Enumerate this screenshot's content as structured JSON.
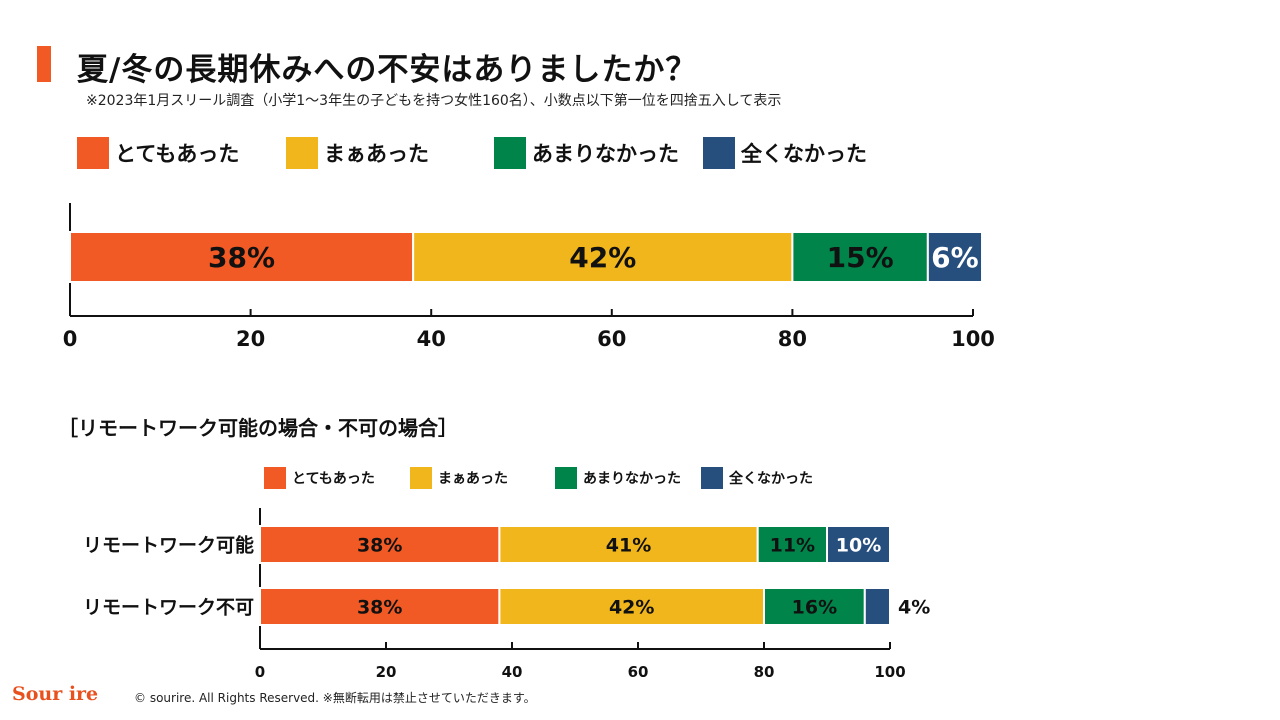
{
  "header": {
    "title": "夏/冬の長期休みへの不安はありましたか？",
    "note": "※2023年1月スリール調査（小学1〜3年生の子どもを持つ女性160名）、小数点以下第一位を四捨五入して表示"
  },
  "legend": [
    {
      "label": "とてもあった",
      "color": "#F15A24"
    },
    {
      "label": "まぁあった",
      "color": "#F1B61C"
    },
    {
      "label": "あまりなかった",
      "color": "#00844A"
    },
    {
      "label": "全くなかった",
      "color": "#264F7E"
    }
  ],
  "subtitle": "［リモートワーク可能の場合・不可の場合］",
  "chart_data": [
    {
      "type": "bar",
      "orientation": "horizontal",
      "stacked": true,
      "categories": [
        ""
      ],
      "series": [
        {
          "name": "とてもあった",
          "values": [
            38
          ],
          "color": "#F15A24"
        },
        {
          "name": "まぁあった",
          "values": [
            42
          ],
          "color": "#F1B61C"
        },
        {
          "name": "あまりなかった",
          "values": [
            15
          ],
          "color": "#00844A"
        },
        {
          "name": "全くなかった",
          "values": [
            6
          ],
          "color": "#264F7E"
        }
      ],
      "data_labels": [
        [
          "38%",
          "42%",
          "15%",
          "6%"
        ]
      ],
      "xlim": [
        0,
        100
      ],
      "xticks": [
        "0",
        "20",
        "40",
        "60",
        "80",
        "100"
      ],
      "legend": "top"
    },
    {
      "type": "bar",
      "orientation": "horizontal",
      "stacked": true,
      "categories": [
        "リモートワーク可能",
        "リモートワーク不可"
      ],
      "series": [
        {
          "name": "とてもあった",
          "values": [
            38,
            38
          ],
          "color": "#F15A24"
        },
        {
          "name": "まぁあった",
          "values": [
            41,
            42
          ],
          "color": "#F1B61C"
        },
        {
          "name": "あまりなかった",
          "values": [
            11,
            16
          ],
          "color": "#00844A"
        },
        {
          "name": "全くなかった",
          "values": [
            10,
            4
          ],
          "color": "#264F7E"
        }
      ],
      "data_labels": [
        [
          "38%",
          "41%",
          "11%",
          "10%"
        ],
        [
          "38%",
          "42%",
          "16%",
          "4%"
        ]
      ],
      "xlim": [
        0,
        100
      ],
      "xticks": [
        "0",
        "20",
        "40",
        "60",
        "80",
        "100"
      ],
      "legend": "top"
    }
  ],
  "footer": {
    "logo": "Sour ire",
    "copyright": "© sourire. All Rights Reserved. ※無断転用は禁止させていただきます。"
  }
}
